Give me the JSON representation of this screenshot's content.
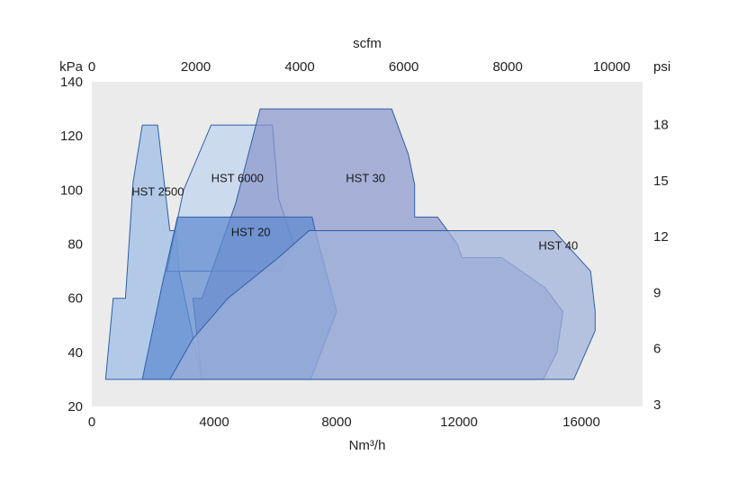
{
  "chart_data": {
    "type": "area",
    "x_bottom": {
      "label": "Nm³/h",
      "range": [
        0,
        18000
      ],
      "ticks": [
        0,
        4000,
        8000,
        12000,
        16000
      ]
    },
    "x_top": {
      "label": "scfm",
      "range": [
        0,
        10594
      ],
      "ticks": [
        0,
        2000,
        4000,
        6000,
        8000,
        10000
      ]
    },
    "y_left": {
      "unit": "kPa",
      "range": [
        20,
        140
      ],
      "ticks": [
        20,
        40,
        60,
        80,
        100,
        120,
        140
      ]
    },
    "y_right": {
      "unit": "psi",
      "range": [
        2.9,
        20.3
      ],
      "ticks": [
        3,
        6,
        9,
        12,
        15,
        18
      ]
    },
    "grid": false,
    "background": "#ebebeb",
    "series": [
      {
        "name": "HST 2500",
        "color": "#9bbde6",
        "points": [
          [
            450,
            30
          ],
          [
            700,
            60
          ],
          [
            1100,
            60
          ],
          [
            1350,
            103
          ],
          [
            1650,
            124
          ],
          [
            2150,
            124
          ],
          [
            2550,
            85
          ],
          [
            2750,
            85
          ],
          [
            2850,
            70
          ],
          [
            3600,
            30
          ]
        ]
      },
      {
        "name": "HST 6000",
        "color": "#bfd3ee",
        "points": [
          [
            2450,
            70
          ],
          [
            3000,
            100
          ],
          [
            3900,
            124
          ],
          [
            5900,
            124
          ],
          [
            6100,
            97
          ],
          [
            6600,
            80
          ],
          [
            6200,
            70
          ]
        ]
      },
      {
        "name": "HST 30",
        "color": "#8b97cc",
        "points": [
          [
            3300,
            60
          ],
          [
            3600,
            60
          ],
          [
            4700,
            95
          ],
          [
            5500,
            130
          ],
          [
            9800,
            130
          ],
          [
            10350,
            113
          ],
          [
            10550,
            102
          ],
          [
            10550,
            90
          ],
          [
            11300,
            90
          ],
          [
            11950,
            80
          ],
          [
            12100,
            75
          ],
          [
            13400,
            75
          ],
          [
            14800,
            64
          ],
          [
            15400,
            55
          ],
          [
            15200,
            40
          ],
          [
            14750,
            30
          ],
          [
            3600,
            30
          ]
        ]
      },
      {
        "name": "HST 20",
        "color": "#5e8ad0",
        "points": [
          [
            1650,
            30
          ],
          [
            2300,
            65
          ],
          [
            2800,
            90
          ],
          [
            7200,
            90
          ],
          [
            7300,
            85
          ],
          [
            8000,
            55
          ],
          [
            7150,
            30
          ]
        ]
      },
      {
        "name": "HST 40",
        "color": "#9fb2da",
        "points": [
          [
            2550,
            30
          ],
          [
            3300,
            45
          ],
          [
            4450,
            60
          ],
          [
            6100,
            75
          ],
          [
            7100,
            85
          ],
          [
            15100,
            85
          ],
          [
            16300,
            70
          ],
          [
            16450,
            55
          ],
          [
            16450,
            48
          ],
          [
            15750,
            30
          ]
        ]
      }
    ],
    "labels": [
      {
        "text": "HST 2500",
        "x": 1300,
        "y": 98
      },
      {
        "text": "HST 6000",
        "x": 3900,
        "y": 103
      },
      {
        "text": "HST 30",
        "x": 8300,
        "y": 103
      },
      {
        "text": "HST 20",
        "x": 4550,
        "y": 83
      },
      {
        "text": "HST 40",
        "x": 14600,
        "y": 78
      }
    ]
  }
}
